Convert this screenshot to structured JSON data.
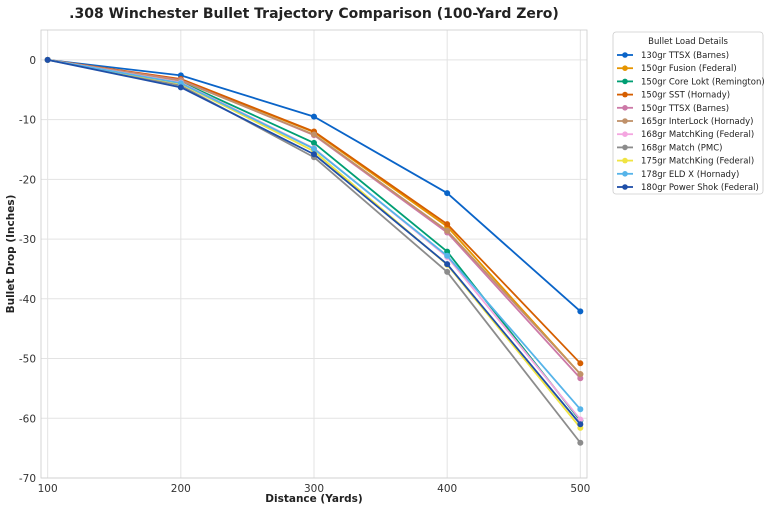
{
  "chart_data": {
    "type": "line",
    "title": ".308 Winchester Bullet Trajectory Comparison (100-Yard Zero)",
    "xlabel": "Distance (Yards)",
    "ylabel": "Bullet Drop (Inches)",
    "x": [
      100,
      200,
      300,
      400,
      500
    ],
    "xlim": [
      95,
      505
    ],
    "ylim": [
      -70,
      5
    ],
    "xticks": [
      100,
      200,
      300,
      400,
      500
    ],
    "yticks": [
      0,
      -10,
      -20,
      -30,
      -40,
      -50,
      -60,
      -70
    ],
    "grid": true,
    "legend": {
      "title": "Bullet Load Details",
      "placement": "outside-top-right"
    },
    "series": [
      {
        "name": "130gr TTSX (Barnes)",
        "color": "#0a64c8",
        "values": [
          0,
          -2.6,
          -9.5,
          -22.3,
          -42.1
        ]
      },
      {
        "name": "150gr Fusion (Federal)",
        "color": "#e69500",
        "values": [
          0,
          -3.3,
          -12.1,
          -27.9,
          -52.6
        ]
      },
      {
        "name": "150gr Core Lokt (Remington)",
        "color": "#009e73",
        "values": [
          0,
          -3.7,
          -13.9,
          -32.1,
          -60.4
        ]
      },
      {
        "name": "150gr SST (Hornady)",
        "color": "#d55e00",
        "values": [
          0,
          -3.2,
          -12.0,
          -27.5,
          -50.8
        ]
      },
      {
        "name": "150gr TTSX (Barnes)",
        "color": "#cc79a7",
        "values": [
          0,
          -3.4,
          -12.6,
          -28.9,
          -53.3
        ]
      },
      {
        "name": "165gr InterLock (Hornady)",
        "color": "#c0916a",
        "values": [
          0,
          -3.5,
          -12.5,
          -28.6,
          -52.6
        ]
      },
      {
        "name": "168gr MatchKing (Federal)",
        "color": "#f4a6e0",
        "values": [
          0,
          -3.8,
          -14.8,
          -33.0,
          -60.2
        ]
      },
      {
        "name": "168gr Match (PMC)",
        "color": "#8c8c8c",
        "values": [
          0,
          -4.3,
          -16.3,
          -35.5,
          -64.1
        ]
      },
      {
        "name": "175gr MatchKing (Federal)",
        "color": "#f0e442",
        "values": [
          0,
          -4.0,
          -15.3,
          -34.3,
          -61.6
        ]
      },
      {
        "name": "178gr ELD X (Hornady)",
        "color": "#56b4e9",
        "values": [
          0,
          -3.9,
          -14.9,
          -32.8,
          -58.5
        ]
      },
      {
        "name": "180gr Power Shok (Federal)",
        "color": "#1f4fa8",
        "values": [
          0,
          -4.6,
          -15.8,
          -34.2,
          -61.0
        ]
      }
    ]
  }
}
